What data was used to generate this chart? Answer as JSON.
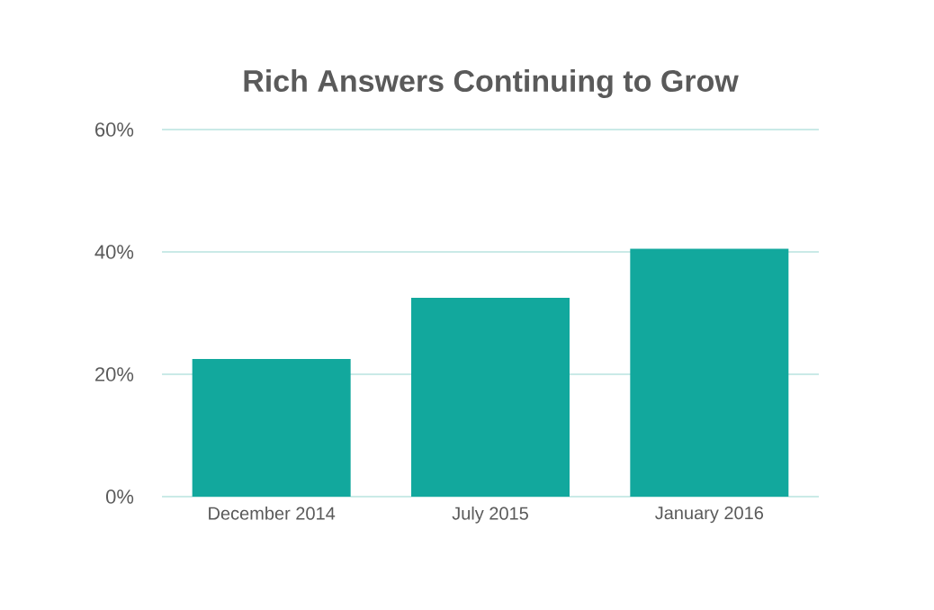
{
  "chart_data": {
    "type": "bar",
    "title": "Rich Answers Continuing to Grow",
    "categories": [
      "December 2014",
      "July 2015",
      "January 2016"
    ],
    "values": [
      22.5,
      32.5,
      40.5
    ],
    "color": "#12a89d",
    "ylim": [
      0,
      60
    ],
    "yticks": [
      {
        "value": 0,
        "label": "0%"
      },
      {
        "value": 20,
        "label": "20%"
      },
      {
        "value": 40,
        "label": "40%"
      },
      {
        "value": 60,
        "label": "60%"
      }
    ],
    "grid": "y"
  }
}
